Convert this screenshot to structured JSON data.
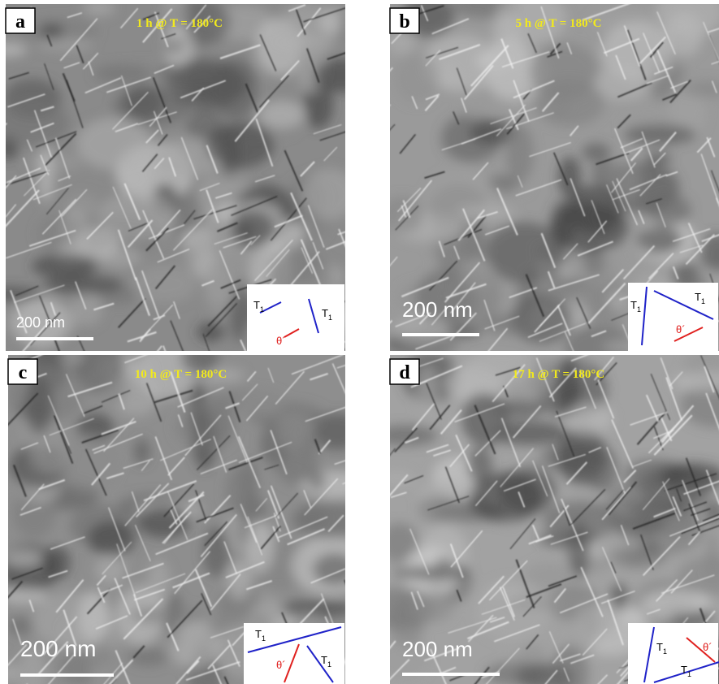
{
  "panels": [
    {
      "letter": "a",
      "title": "1 h @ T = 180°C",
      "scale_bar": "200 nm",
      "inset": [
        {
          "text": "T",
          "sub": "1"
        },
        {
          "text": "T",
          "sub": "1"
        },
        {
          "text": "θ´"
        }
      ]
    },
    {
      "letter": "b",
      "title": "5 h @ T = 180°C",
      "scale_bar": "200 nm",
      "inset": [
        {
          "text": "T",
          "sub": "1"
        },
        {
          "text": "T",
          "sub": "1"
        },
        {
          "text": "θ´"
        }
      ]
    },
    {
      "letter": "c",
      "title": "10 h @ T = 180°C",
      "scale_bar": "200 nm",
      "inset": [
        {
          "text": "T",
          "sub": "1"
        },
        {
          "text": "θ´"
        },
        {
          "text": "T",
          "sub": "1"
        }
      ]
    },
    {
      "letter": "d",
      "title": "17 h @ T = 180°C",
      "scale_bar": "200 nm",
      "inset": [
        {
          "text": "T",
          "sub": "1"
        },
        {
          "text": "θ´"
        },
        {
          "text": "T",
          "sub": "1"
        }
      ]
    }
  ]
}
